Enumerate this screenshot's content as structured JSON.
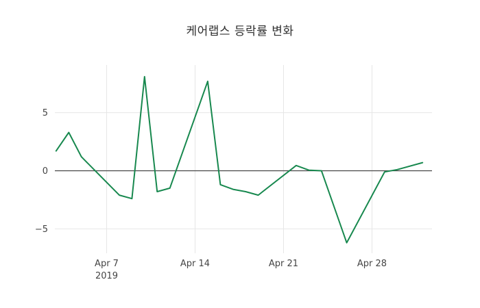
{
  "chart_data": {
    "type": "line",
    "title": "케어랩스 등락률 변화",
    "xlabel": "",
    "ylabel": "",
    "legend": "none",
    "grid": true,
    "background": "#ffffff",
    "x_range": [
      "2019-04-03",
      "2019-05-02"
    ],
    "ylim": [
      -7.1,
      9.1
    ],
    "y_ticks": [
      {
        "value": 5,
        "label": "5"
      },
      {
        "value": 0,
        "label": "0"
      },
      {
        "value": -5,
        "label": "−5"
      }
    ],
    "x_ticks": [
      {
        "date": "2019-04-07",
        "label": "Apr 7",
        "sublabel": "2019"
      },
      {
        "date": "2019-04-14",
        "label": "Apr 14"
      },
      {
        "date": "2019-04-21",
        "label": "Apr 21"
      },
      {
        "date": "2019-04-28",
        "label": "Apr 28"
      }
    ],
    "series": [
      {
        "name": "케어랩스 등락률",
        "points": [
          {
            "date": "2019-04-03",
            "value": 1.7
          },
          {
            "date": "2019-04-04",
            "value": 3.3
          },
          {
            "date": "2019-04-05",
            "value": 1.2
          },
          {
            "date": "2019-04-08",
            "value": -2.1
          },
          {
            "date": "2019-04-09",
            "value": -2.4
          },
          {
            "date": "2019-04-10",
            "value": 8.1
          },
          {
            "date": "2019-04-11",
            "value": -1.8
          },
          {
            "date": "2019-04-12",
            "value": -1.5
          },
          {
            "date": "2019-04-15",
            "value": 7.7
          },
          {
            "date": "2019-04-16",
            "value": -1.2
          },
          {
            "date": "2019-04-17",
            "value": -1.6
          },
          {
            "date": "2019-04-18",
            "value": -1.8
          },
          {
            "date": "2019-04-19",
            "value": -2.1
          },
          {
            "date": "2019-04-22",
            "value": 0.45
          },
          {
            "date": "2019-04-23",
            "value": 0.05
          },
          {
            "date": "2019-04-24",
            "value": 0.0
          },
          {
            "date": "2019-04-25",
            "value": -3.1
          },
          {
            "date": "2019-04-26",
            "value": -6.2
          },
          {
            "date": "2019-04-29",
            "value": -0.1
          },
          {
            "date": "2019-04-30",
            "value": 0.1
          },
          {
            "date": "2019-05-02",
            "value": 0.7
          }
        ]
      }
    ],
    "colors": {
      "line": "#17884e",
      "grid": "#e6e6e6",
      "zero_line": "#444444",
      "tick_text": "#444444",
      "title_text": "#2f2f2f"
    }
  }
}
